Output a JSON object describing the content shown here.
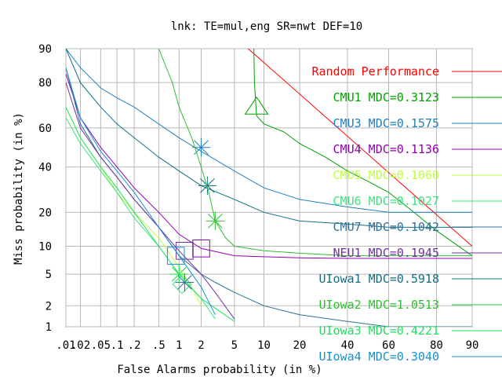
{
  "chart_data": {
    "type": "line",
    "title": "lnk: TE=mul,eng SR=nwt DEF=10",
    "xlabel": "False Alarms probability (in %)",
    "ylabel": "Miss probability (in %)",
    "x_scale": "normal-deviate (DET)",
    "y_scale": "normal-deviate (DET)",
    "xlim": [
      0.01,
      90
    ],
    "ylim": [
      1,
      90
    ],
    "grid": true,
    "legend_placement": "right, inside plot",
    "x_ticks": [
      {
        "value": 0.01,
        "label": ".01"
      },
      {
        "value": 0.02,
        "label": ".02"
      },
      {
        "value": 0.05,
        "label": ".05"
      },
      {
        "value": 0.1,
        "label": ".1"
      },
      {
        "value": 0.2,
        "label": ".2"
      },
      {
        "value": 0.5,
        "label": ".5"
      },
      {
        "value": 1,
        "label": "1"
      },
      {
        "value": 2,
        "label": "2"
      },
      {
        "value": 5,
        "label": "5"
      },
      {
        "value": 10,
        "label": "10"
      },
      {
        "value": 20,
        "label": "20"
      },
      {
        "value": 40,
        "label": "40"
      },
      {
        "value": 60,
        "label": "60"
      },
      {
        "value": 80,
        "label": "80"
      },
      {
        "value": 90,
        "label": "90"
      }
    ],
    "y_ticks": [
      {
        "value": 1,
        "label": "1"
      },
      {
        "value": 2,
        "label": "2"
      },
      {
        "value": 5,
        "label": "5"
      },
      {
        "value": 10,
        "label": "10"
      },
      {
        "value": 20,
        "label": "20"
      },
      {
        "value": 40,
        "label": "40"
      },
      {
        "value": 60,
        "label": "60"
      },
      {
        "value": 80,
        "label": "80"
      },
      {
        "value": 90,
        "label": "90"
      }
    ],
    "series": [
      {
        "name": "Random Performance",
        "color": "#ff0000",
        "x": [
          7,
          90
        ],
        "y": [
          90,
          10
        ]
      },
      {
        "name": "CMU1 MDC=0.3123",
        "color": "#00a000",
        "marker": "triangle",
        "marker_at": [
          8.5,
          70
        ],
        "x": [
          8,
          8.1,
          8.5,
          10,
          15,
          20,
          30,
          40,
          50,
          60,
          70,
          80,
          90
        ],
        "y": [
          90,
          80,
          66,
          62,
          58,
          52,
          45,
          38,
          33,
          28,
          21,
          14,
          8
        ]
      },
      {
        "name": "CMU3 MDC=0.1575",
        "color": "#2080c0",
        "marker": "x",
        "marker_at": [
          2,
          50
        ],
        "x": [
          0.01,
          0.02,
          0.05,
          0.1,
          0.2,
          0.5,
          1,
          2,
          5,
          10,
          20,
          40,
          60,
          90
        ],
        "y": [
          90,
          85,
          78,
          74,
          70,
          62,
          55,
          48,
          38,
          30,
          25,
          22,
          20,
          20
        ]
      },
      {
        "name": "CMU4 MDC=0.1136",
        "color": "#9000b0",
        "marker": "square",
        "marker_at": [
          2,
          9.5
        ],
        "x": [
          0.01,
          0.02,
          0.05,
          0.1,
          0.2,
          0.5,
          1,
          2,
          5,
          10,
          20,
          40,
          60,
          90
        ],
        "y": [
          83,
          65,
          50,
          40,
          30,
          20,
          13,
          9.5,
          8,
          7.8,
          7.6,
          7.5,
          7.5,
          7.5
        ]
      },
      {
        "name": "CMU5 MDC=0.1060",
        "color": "#c0ff40",
        "marker": "x",
        "marker_at": [
          1,
          5
        ],
        "x": [
          0.01,
          0.02,
          0.05,
          0.1,
          0.2,
          0.5,
          1,
          1.5,
          2
        ],
        "y": [
          70,
          55,
          40,
          28,
          20,
          12,
          6,
          3.5,
          2
        ]
      },
      {
        "name": "CMU6 MDC=0.1027",
        "color": "#40e080",
        "marker": "diamond",
        "marker_at": [
          1.1,
          3.8
        ],
        "x": [
          0.01,
          0.02,
          0.05,
          0.1,
          0.2,
          0.5,
          1,
          2,
          3
        ],
        "y": [
          65,
          52,
          38,
          28,
          18,
          10,
          5,
          2.5,
          1.3
        ]
      },
      {
        "name": "CMU7 MDC=0.1042",
        "color": "#30709a",
        "marker": "x",
        "marker_at": [
          1.2,
          4
        ],
        "x": [
          0.01,
          0.02,
          0.05,
          0.1,
          0.2,
          0.5,
          1,
          2,
          3,
          5,
          10,
          20,
          40,
          60,
          90
        ],
        "y": [
          85,
          62,
          45,
          35,
          25,
          15,
          8,
          5,
          4,
          3,
          2,
          1.5,
          1.2,
          1,
          1
        ]
      },
      {
        "name": "NEU1 MDC=0.1945",
        "color": "#7030a0",
        "marker": "square",
        "marker_at": [
          1.2,
          9
        ],
        "x": [
          0.01,
          0.02,
          0.05,
          0.1,
          0.2,
          0.5,
          1,
          2,
          3,
          5
        ],
        "y": [
          80,
          60,
          45,
          35,
          25,
          15,
          9,
          5,
          3,
          1.3
        ]
      },
      {
        "name": "UIowa1 MDC=0.5918",
        "color": "#107080",
        "marker": "x",
        "marker_at": [
          2.4,
          31
        ],
        "x": [
          0.01,
          0.02,
          0.05,
          0.1,
          0.2,
          0.5,
          1,
          2,
          5,
          10,
          20,
          40,
          60,
          90
        ],
        "y": [
          90,
          80,
          70,
          62,
          55,
          45,
          38,
          31,
          25,
          20,
          17,
          16,
          15,
          15
        ]
      },
      {
        "name": "UIowa2 MDC=1.0513",
        "color": "#30c030",
        "marker": "x",
        "marker_at": [
          3,
          17
        ],
        "x": [
          0.5,
          0.8,
          1,
          1.5,
          2,
          2.5,
          3,
          4,
          5,
          10,
          20,
          40,
          90
        ],
        "y": [
          90,
          80,
          70,
          55,
          40,
          28,
          17,
          12,
          10,
          9,
          8.5,
          8,
          8
        ]
      },
      {
        "name": "UIowa3 MDC=0.4221",
        "color": "#20e060",
        "marker": "x",
        "marker_at": [
          1,
          5
        ],
        "x": [
          0.01,
          0.02,
          0.05,
          0.1,
          0.2,
          0.5,
          1,
          2,
          5
        ],
        "y": [
          70,
          55,
          40,
          30,
          20,
          10,
          5,
          2.5,
          1.2
        ]
      },
      {
        "name": "UIowa4 MDC=0.3040",
        "color": "#1890d0",
        "marker": "square",
        "marker_at": [
          0.9,
          8
        ],
        "x": [
          0.01,
          0.02,
          0.05,
          0.1,
          0.2,
          0.5,
          1,
          2,
          3
        ],
        "y": [
          85,
          65,
          48,
          38,
          28,
          15,
          8,
          3.5,
          1.5
        ]
      }
    ]
  }
}
